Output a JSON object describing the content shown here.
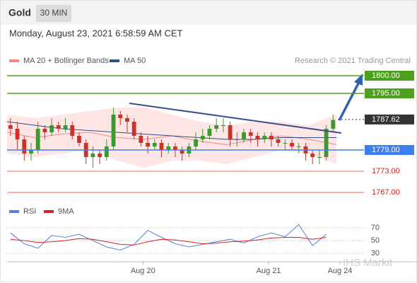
{
  "header": {
    "symbol": "Gold",
    "interval": "30 MIN",
    "timestamp": "Monday, August 23, 2021 6:58:59 AM CET"
  },
  "chart_data": {
    "type": "candlestick",
    "legend": {
      "ma20": "MA 20 + Bollinger Bands",
      "ma50": "MA 50"
    },
    "credit": "Research © 2021 Trading Central",
    "watermark": "IHS Markit",
    "xlim": [
      0,
      52
    ],
    "xticks": [
      {
        "value": 19.8,
        "label": "Aug 20"
      },
      {
        "value": 38.1,
        "label": "Aug 21"
      },
      {
        "value": 48.5,
        "label": "Aug 24"
      }
    ],
    "ylim": [
      1765,
      1807
    ],
    "up_color": "#3a9a2e",
    "down_color": "#c8342a",
    "open": [
      1786,
      1785,
      1782,
      1778,
      1779,
      1785,
      1784,
      1786,
      1785,
      1786,
      1783,
      1781,
      1777,
      1778,
      1777,
      1780,
      1789,
      1788,
      1787,
      1783,
      1781,
      1780,
      1781,
      1779,
      1780,
      1779,
      1778,
      1780,
      1782,
      1783,
      1785,
      1786,
      1786,
      1782,
      1782,
      1784,
      1783,
      1782,
      1783,
      1782,
      1781,
      1781,
      1780,
      1780,
      1778,
      1777,
      1777,
      1785
    ],
    "high": [
      1788,
      1787,
      1783,
      1781,
      1787,
      1786,
      1788,
      1787,
      1788,
      1787,
      1784,
      1782,
      1780,
      1779,
      1782,
      1791,
      1790,
      1789,
      1788,
      1784,
      1783,
      1782,
      1782,
      1781,
      1781,
      1780,
      1781,
      1784,
      1785,
      1786,
      1788,
      1788,
      1787,
      1784,
      1785,
      1785,
      1784,
      1784,
      1784,
      1783,
      1782,
      1782,
      1781,
      1781,
      1779,
      1779,
      1786,
      1789
    ],
    "low": [
      1783,
      1779,
      1776,
      1776,
      1778,
      1782,
      1783,
      1784,
      1784,
      1782,
      1780,
      1775,
      1774,
      1775,
      1776,
      1779,
      1786,
      1784,
      1782,
      1780,
      1778,
      1779,
      1777,
      1778,
      1777,
      1776,
      1777,
      1779,
      1781,
      1782,
      1784,
      1784,
      1780,
      1780,
      1781,
      1781,
      1780,
      1781,
      1780,
      1780,
      1779,
      1779,
      1778,
      1776,
      1775,
      1775,
      1776,
      1784
    ],
    "close": [
      1785,
      1782,
      1778,
      1779,
      1785,
      1784,
      1786,
      1785,
      1786,
      1783,
      1781,
      1777,
      1778,
      1777,
      1780,
      1789,
      1788,
      1787,
      1783,
      1781,
      1780,
      1781,
      1779,
      1780,
      1779,
      1778,
      1780,
      1782,
      1783,
      1785,
      1786,
      1786,
      1782,
      1782,
      1784,
      1783,
      1782,
      1783,
      1782,
      1781,
      1781,
      1780,
      1780,
      1778,
      1777,
      1777,
      1785,
      1787.5
    ],
    "indicator_x": [
      0,
      4,
      8,
      12,
      16,
      20,
      24,
      28,
      32,
      36,
      40,
      44,
      48
    ],
    "ma20": {
      "color": "#f08a80",
      "values": [
        1784,
        1782.5,
        1783.5,
        1784,
        1782.5,
        1782,
        1783,
        1781.5,
        1780.5,
        1782,
        1783,
        1782,
        1780.5
      ]
    },
    "band_upper": [
      1789,
      1788,
      1789,
      1790,
      1791,
      1791,
      1789,
      1787,
      1786,
      1787,
      1787,
      1786,
      1789
    ],
    "band_lower": [
      1778,
      1777,
      1778,
      1779,
      1776,
      1774,
      1776,
      1776,
      1775,
      1777,
      1779,
      1778,
      1775
    ],
    "band_color": "#fde0de",
    "ma50": {
      "color": "#2f4f8a",
      "values": [
        1787,
        1786,
        1785,
        1784.5,
        1784,
        1783.5,
        1783,
        1782.5,
        1782,
        1782,
        1782.5,
        1782.5,
        1782.5
      ]
    },
    "levels": [
      {
        "value": 1800,
        "label": "1800.00",
        "color": "#4ea01e",
        "boxed": true
      },
      {
        "value": 1795,
        "label": "1795.00",
        "color": "#4ea01e",
        "boxed": true
      },
      {
        "value": 1787.62,
        "label": "1787.62",
        "color": "#333333",
        "boxed": true,
        "dotted": true
      },
      {
        "value": 1779,
        "label": "1779.00",
        "color": "#3d7ef0",
        "boxed": true
      },
      {
        "value": 1773,
        "label": "1773.00",
        "color": "#f29a9a",
        "text_color": "#d02020",
        "boxed": false
      },
      {
        "value": 1767,
        "label": "1767.00",
        "color": "#f29a9a",
        "text_color": "#d02020",
        "boxed": false
      }
    ],
    "rsi": {
      "legend": {
        "rsi": "RSI",
        "ma": "9MA"
      },
      "ylim": [
        10,
        90
      ],
      "yticks": [
        70,
        50,
        30
      ],
      "x": [
        0.5,
        2.5,
        4.5,
        6.5,
        8.5,
        10.5,
        12.5,
        14.5,
        16.5,
        18.5,
        20.5,
        22.5,
        24.5,
        26.5,
        28.5,
        30.5,
        32.5,
        34.5,
        36.5,
        38.5,
        40.5,
        42.5,
        44.5,
        46.5
      ],
      "series": [
        {
          "name": "RSI",
          "color": "#5a7fd6",
          "values": [
            62,
            45,
            38,
            58,
            55,
            60,
            50,
            40,
            35,
            44,
            66,
            55,
            45,
            40,
            44,
            48,
            52,
            46,
            56,
            62,
            56,
            75,
            42,
            60
          ]
        },
        {
          "name": "9MA",
          "color": "#d82020",
          "values": [
            52,
            50,
            47,
            48,
            50,
            53,
            52,
            48,
            44,
            43,
            48,
            52,
            51,
            48,
            45,
            46,
            48,
            49,
            51,
            54,
            55,
            55,
            52,
            55
          ]
        }
      ]
    }
  }
}
